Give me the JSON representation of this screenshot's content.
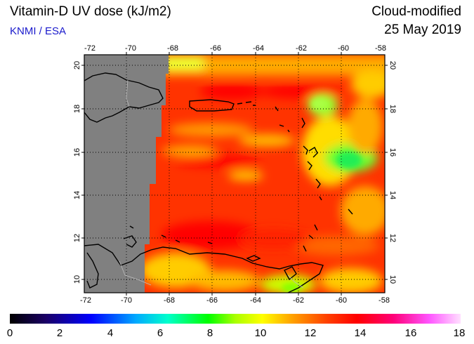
{
  "header": {
    "title": "Vitamin-D UV dose (kJ/m2)",
    "credit": "KNMI / ESA",
    "mode": "Cloud-modified",
    "date": "25 May 2019"
  },
  "map": {
    "lon_labels": [
      "-72",
      "-70",
      "-68",
      "-66",
      "-64",
      "-62",
      "-60",
      "-58"
    ],
    "lat_labels": [
      "10",
      "12",
      "14",
      "16",
      "18",
      "20"
    ],
    "lon_range": [
      -72,
      -58
    ],
    "lat_range": [
      9.4,
      20.4
    ],
    "no_data_color": "#808080"
  },
  "colorbar": {
    "labels": [
      "0",
      "2",
      "4",
      "6",
      "8",
      "10",
      "12",
      "14",
      "16",
      "18"
    ],
    "range": [
      0,
      18
    ]
  }
}
